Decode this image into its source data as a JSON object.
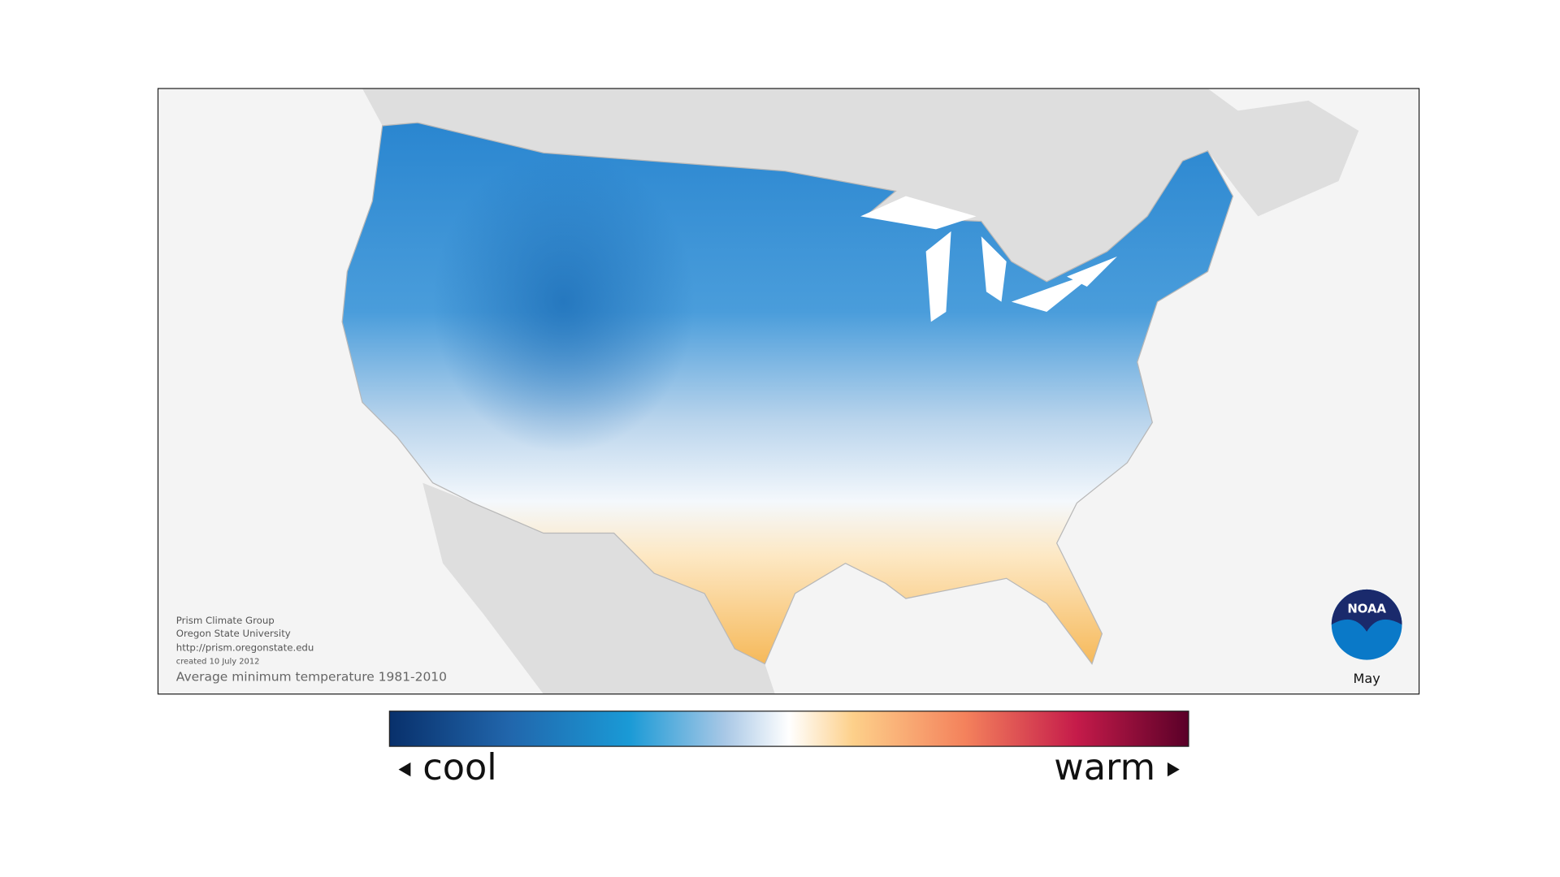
{
  "map": {
    "credits": [
      "Prism Climate Group",
      "Oregon State University",
      "http://prism.oregonstate.edu",
      "created 10 July 2012"
    ],
    "caption": "Average minimum temperature 1981-2010",
    "month": "May",
    "logo": "NOAA"
  },
  "legend": {
    "low": "cool",
    "high": "warm"
  }
}
